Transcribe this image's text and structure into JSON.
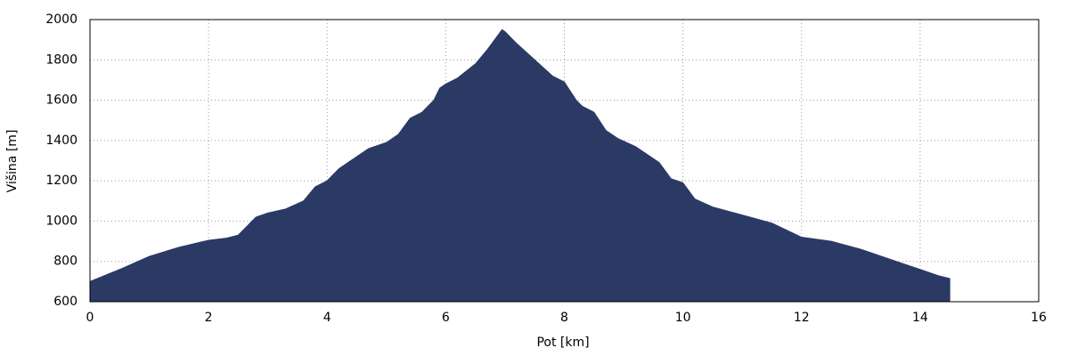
{
  "chart_data": {
    "type": "area",
    "xlabel": "Pot [km]",
    "ylabel": "Višina [m]",
    "x": [
      0,
      0.5,
      1.0,
      1.5,
      2.0,
      2.3,
      2.5,
      2.6,
      2.8,
      3.0,
      3.3,
      3.6,
      3.8,
      4.0,
      4.2,
      4.5,
      4.7,
      5.0,
      5.2,
      5.4,
      5.6,
      5.8,
      5.9,
      6.0,
      6.2,
      6.5,
      6.7,
      6.9,
      6.95,
      7.0,
      7.2,
      7.5,
      7.8,
      8.0,
      8.2,
      8.3,
      8.5,
      8.7,
      8.9,
      9.2,
      9.4,
      9.6,
      9.8,
      10.0,
      10.2,
      10.5,
      11.0,
      11.5,
      12.0,
      12.5,
      13.0,
      13.5,
      14.0,
      14.3,
      14.5
    ],
    "values": [
      700,
      760,
      825,
      870,
      905,
      915,
      930,
      960,
      1020,
      1040,
      1060,
      1100,
      1170,
      1200,
      1260,
      1320,
      1360,
      1390,
      1430,
      1510,
      1540,
      1600,
      1660,
      1680,
      1710,
      1780,
      1850,
      1930,
      1950,
      1940,
      1880,
      1800,
      1720,
      1690,
      1600,
      1570,
      1540,
      1450,
      1410,
      1370,
      1330,
      1290,
      1210,
      1190,
      1110,
      1070,
      1030,
      990,
      920,
      900,
      860,
      810,
      760,
      730,
      715
    ],
    "color": "#2b3a64",
    "xlim": [
      0,
      16
    ],
    "xticks": [
      0,
      2,
      4,
      6,
      8,
      10,
      12,
      14,
      16
    ],
    "ylim": [
      600,
      2000
    ],
    "yticks": [
      600,
      800,
      1000,
      1200,
      1400,
      1600,
      1800,
      2000
    ],
    "grid": true
  }
}
